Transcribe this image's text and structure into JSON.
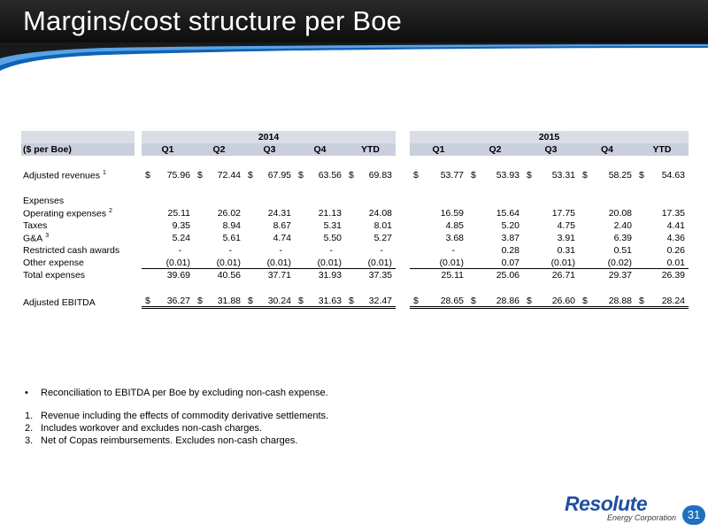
{
  "title": "Margins/cost structure per Boe",
  "table": {
    "years": [
      "2014",
      "2015"
    ],
    "unit_label": "($ per Boe)",
    "columns": [
      "Q1",
      "Q2",
      "Q3",
      "Q4",
      "YTD",
      "Q1",
      "Q2",
      "Q3",
      "Q4",
      "YTD"
    ],
    "rows": [
      {
        "label": "Adjusted revenues",
        "note": "1",
        "dollar": true,
        "style": "",
        "values": [
          "75.96",
          "72.44",
          "67.95",
          "63.56",
          "69.83",
          "53.77",
          "53.93",
          "53.31",
          "58.25",
          "54.63"
        ]
      },
      {
        "label": "Expenses",
        "note": "",
        "dollar": false,
        "style": "heading",
        "values": []
      },
      {
        "label": "Operating expenses",
        "note": "2",
        "dollar": false,
        "style": "",
        "values": [
          "25.11",
          "26.02",
          "24.31",
          "21.13",
          "24.08",
          "16.59",
          "15.64",
          "17.75",
          "20.08",
          "17.35"
        ]
      },
      {
        "label": "Taxes",
        "note": "",
        "dollar": false,
        "style": "",
        "values": [
          "9.35",
          "8.94",
          "8.67",
          "5.31",
          "8.01",
          "4.85",
          "5.20",
          "4.75",
          "2.40",
          "4.41"
        ]
      },
      {
        "label": "G&A",
        "note": "3",
        "dollar": false,
        "style": "",
        "values": [
          "5.24",
          "5.61",
          "4.74",
          "5.50",
          "5.27",
          "3.68",
          "3.87",
          "3.91",
          "6.39",
          "4.36"
        ]
      },
      {
        "label": "Restricted cash awards",
        "note": "",
        "dollar": false,
        "style": "",
        "values": [
          "-",
          "-",
          "-",
          "-",
          "-",
          "-",
          "0.28",
          "0.31",
          "0.51",
          "0.26"
        ]
      },
      {
        "label": "Other expense",
        "note": "",
        "dollar": false,
        "style": "underline",
        "values": [
          "(0.01)",
          "(0.01)",
          "(0.01)",
          "(0.01)",
          "(0.01)",
          "(0.01)",
          "0.07",
          "(0.01)",
          "(0.02)",
          "0.01"
        ]
      },
      {
        "label": "Total expenses",
        "note": "",
        "dollar": false,
        "style": "",
        "values": [
          "39.69",
          "40.56",
          "37.71",
          "31.93",
          "37.35",
          "25.11",
          "25.06",
          "26.71",
          "29.37",
          "26.39"
        ]
      },
      {
        "label": "Adjusted EBITDA",
        "note": "",
        "dollar": true,
        "style": "double",
        "values": [
          "36.27",
          "31.88",
          "30.24",
          "31.63",
          "32.47",
          "28.65",
          "28.86",
          "26.60",
          "28.88",
          "28.24"
        ]
      }
    ]
  },
  "bullet": "Reconciliation to EBITDA per Boe by excluding non-cash expense.",
  "footnotes": [
    {
      "marker": "1.",
      "text": "Revenue including the effects of commodity derivative settlements."
    },
    {
      "marker": "2.",
      "text": "Includes workover and excludes non-cash charges."
    },
    {
      "marker": "3.",
      "text": "Net of Copas reimbursements. Excludes non-cash charges."
    }
  ],
  "logo": {
    "name": "Resolute",
    "subtitle": "Energy Corporation"
  },
  "page_number": "31",
  "colors": {
    "banner": "#1a1a1a",
    "header_row": "#c9cfdc",
    "accent": "#1f6fc1"
  }
}
